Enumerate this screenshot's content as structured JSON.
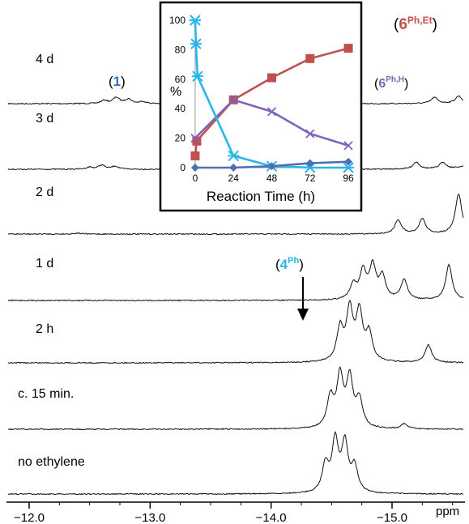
{
  "chart_data": [
    {
      "type": "line",
      "subtype": "stacked-nmr-spectra",
      "xlabel": "ppm",
      "x_ticks": [
        "−12.0",
        "−13.0",
        "−14.0",
        "−15.0"
      ],
      "x_tick_values": [
        -12.0,
        -13.0,
        -14.0,
        -15.0
      ],
      "xlim": [
        -11.7,
        -16.2
      ],
      "x_reversed": true,
      "traces": [
        {
          "name": "4 d",
          "peaks": [
            {
              "ppm": -12.62,
              "height": 0.06
            },
            {
              "ppm": -12.72,
              "height": 0.12
            },
            {
              "ppm": -12.82,
              "height": 0.09
            },
            {
              "ppm": -12.94,
              "height": 0.04
            },
            {
              "ppm": -15.35,
              "height": 0.12
            },
            {
              "ppm": -15.55,
              "height": 0.14
            },
            {
              "ppm": -15.83,
              "height": 0.85
            }
          ]
        },
        {
          "name": "3 d",
          "peaks": [
            {
              "ppm": -12.5,
              "height": 0.04
            },
            {
              "ppm": -12.6,
              "height": 0.08
            },
            {
              "ppm": -12.71,
              "height": 0.06
            },
            {
              "ppm": -15.2,
              "height": 0.14
            },
            {
              "ppm": -15.42,
              "height": 0.13
            },
            {
              "ppm": -15.7,
              "height": 0.9
            }
          ]
        },
        {
          "name": "2 d",
          "peaks": [
            {
              "ppm": -12.4,
              "height": 0.02
            },
            {
              "ppm": -15.05,
              "height": 0.28
            },
            {
              "ppm": -15.25,
              "height": 0.3
            },
            {
              "ppm": -15.55,
              "height": 0.8
            }
          ]
        },
        {
          "name": "1 d",
          "peaks": [
            {
              "ppm": -14.68,
              "height": 0.3
            },
            {
              "ppm": -14.76,
              "height": 0.55
            },
            {
              "ppm": -14.84,
              "height": 0.65
            },
            {
              "ppm": -14.92,
              "height": 0.45
            },
            {
              "ppm": -15.1,
              "height": 0.4
            },
            {
              "ppm": -15.47,
              "height": 0.7
            }
          ]
        },
        {
          "name": "2 h",
          "peaks": [
            {
              "ppm": -14.57,
              "height": 0.65
            },
            {
              "ppm": -14.65,
              "height": 1.0
            },
            {
              "ppm": -14.73,
              "height": 0.95
            },
            {
              "ppm": -14.81,
              "height": 0.55
            },
            {
              "ppm": -15.3,
              "height": 0.35
            }
          ]
        },
        {
          "name": "c. 15 min.",
          "peaks": [
            {
              "ppm": -14.49,
              "height": 0.6
            },
            {
              "ppm": -14.57,
              "height": 1.0
            },
            {
              "ppm": -14.65,
              "height": 0.95
            },
            {
              "ppm": -14.73,
              "height": 0.55
            },
            {
              "ppm": -15.1,
              "height": 0.1
            }
          ]
        },
        {
          "name": "no ethylene",
          "peaks": [
            {
              "ppm": -14.45,
              "height": 0.55
            },
            {
              "ppm": -14.53,
              "height": 1.0
            },
            {
              "ppm": -14.61,
              "height": 0.95
            },
            {
              "ppm": -14.69,
              "height": 0.5
            }
          ]
        }
      ],
      "annotations": [
        {
          "open": "(",
          "label": "1",
          "sup": "",
          "close": ")",
          "color": "#2e75b6",
          "points_to": "4 d"
        },
        {
          "open": "(",
          "label": "6",
          "sup": "Ph,Et",
          "close": ")",
          "color": "#c0504d",
          "points_to": "4 d"
        },
        {
          "open": "(",
          "label": "6",
          "sup": "Ph,H",
          "close": ")",
          "color": "#7f63b8",
          "points_to": "4 d"
        },
        {
          "open": "(",
          "label": "4",
          "sup": "Ph",
          "close": ")",
          "color": "#29b6e8",
          "points_to": "no ethylene",
          "arrow": true
        }
      ]
    },
    {
      "type": "line",
      "subtype": "inset",
      "xlabel": "Reaction Time (h)",
      "ylabel": "%",
      "x_ticks": [
        "0",
        "24",
        "48",
        "72",
        "96"
      ],
      "y_ticks": [
        "0",
        "20",
        "40",
        "60",
        "80",
        "100"
      ],
      "xlim": [
        -2,
        98
      ],
      "ylim": [
        0,
        100
      ],
      "series": [
        {
          "color": "#c0504d",
          "marker": "square",
          "x": [
            0,
            1,
            24,
            48,
            72,
            96
          ],
          "y": [
            8,
            18,
            46,
            61,
            74,
            81
          ]
        },
        {
          "color": "#7f63b8",
          "marker": "x",
          "x": [
            0,
            24,
            48,
            72,
            96
          ],
          "y": [
            20,
            46,
            38,
            23,
            15
          ]
        },
        {
          "color": "#29b6e8",
          "marker": "asterisk",
          "x": [
            0,
            0.5,
            1.5,
            24,
            48,
            72,
            96
          ],
          "y": [
            100,
            84,
            62,
            8,
            1,
            0,
            0
          ]
        },
        {
          "color": "#4f6fb5",
          "marker": "diamond",
          "x": [
            0,
            24,
            48,
            72,
            96
          ],
          "y": [
            0,
            0,
            1,
            3,
            4
          ]
        }
      ]
    }
  ],
  "colors": {
    "axis": "#000000",
    "trace": "#111111"
  }
}
